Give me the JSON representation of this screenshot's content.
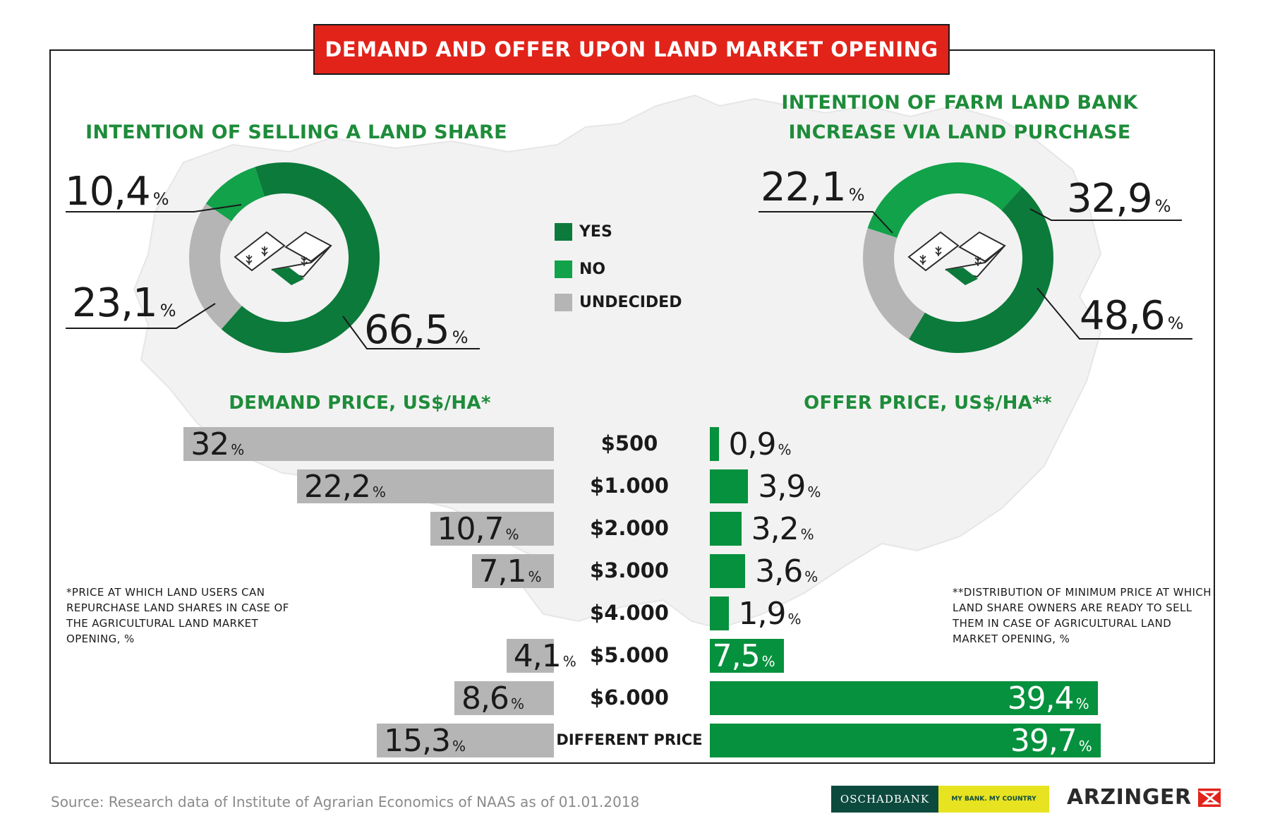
{
  "title": "DEMAND AND OFFER UPON LAND MARKET OPENING",
  "left_chart_title": "INTENTION OF SELLING A LAND SHARE",
  "right_chart_title_line1": "INTENTION OF FARM LAND BANK",
  "right_chart_title_line2": "INCREASE VIA LAND PURCHASE",
  "legend": [
    {
      "label": "YES",
      "color": "#0c7a3a"
    },
    {
      "label": "NO",
      "color": "#12a24a"
    },
    {
      "label": "UNDECIDED",
      "color": "#b5b5b5"
    }
  ],
  "percent_unit": "%",
  "donut_labels": {
    "left_no": "10,4",
    "left_undecided": "23,1",
    "left_yes": "66,5",
    "right_undecided": "22,1",
    "right_no": "32,9",
    "right_yes": "48,6"
  },
  "demand_title": "DEMAND PRICE, US$/HA*",
  "offer_title": "OFFER PRICE, US$/HA**",
  "demand_note": "*Price at which land users can repurchase land shares in case of the agricultural land market opening, %",
  "offer_note": "**Distribution of minimum price at which land share owners are ready to sell them in case of agricultural land market opening, %",
  "bar_labels": {
    "demand": [
      "32",
      "22,2",
      "10,7",
      "7,1",
      "4,1",
      "8,6",
      "15,3"
    ],
    "offer": [
      "0,9",
      "3,9",
      "3,2",
      "3,6",
      "1,9",
      "7,5",
      "39,4",
      "39,7"
    ]
  },
  "price_labels": [
    "$500",
    "$1.000",
    "$2.000",
    "$3.000",
    "$4.000",
    "$5.000",
    "$6.000",
    "DIFFERENT PRICE"
  ],
  "source": "Source: Research data of Institute of Agrarian Economics of NAAS as of 01.01.2018",
  "logos": {
    "oschadbank": "OSCHADBANK",
    "oschadbank_slogan": "MY BANK. MY COUNTRY",
    "arzinger": "ARZINGER",
    "arzinger_color": "#e2231a"
  },
  "chart_data": [
    {
      "type": "pie",
      "title": "INTENTION OF SELLING A LAND SHARE",
      "series": [
        {
          "name": "YES",
          "value": 66.5
        },
        {
          "name": "NO",
          "value": 10.4
        },
        {
          "name": "UNDECIDED",
          "value": 23.1
        }
      ]
    },
    {
      "type": "pie",
      "title": "INTENTION OF FARM LAND BANK INCREASE VIA LAND PURCHASE",
      "series": [
        {
          "name": "YES",
          "value": 48.6
        },
        {
          "name": "NO",
          "value": 32.9
        },
        {
          "name": "UNDECIDED",
          "value": 22.1
        }
      ]
    },
    {
      "type": "bar",
      "title": "DEMAND PRICE, US$/HA*",
      "categories": [
        "$500",
        "$1.000",
        "$2.000",
        "$3.000",
        "$4.000",
        "$5.000",
        "$6.000",
        "DIFFERENT PRICE"
      ],
      "values": [
        32,
        22.2,
        10.7,
        7.1,
        null,
        4.1,
        8.6,
        15.3
      ]
    },
    {
      "type": "bar",
      "title": "OFFER PRICE, US$/HA**",
      "categories": [
        "$500",
        "$1.000",
        "$2.000",
        "$3.000",
        "$4.000",
        "$5.000",
        "$6.000",
        "DIFFERENT PRICE"
      ],
      "values": [
        0.9,
        3.9,
        3.2,
        3.6,
        1.9,
        7.5,
        39.4,
        39.7
      ]
    }
  ]
}
